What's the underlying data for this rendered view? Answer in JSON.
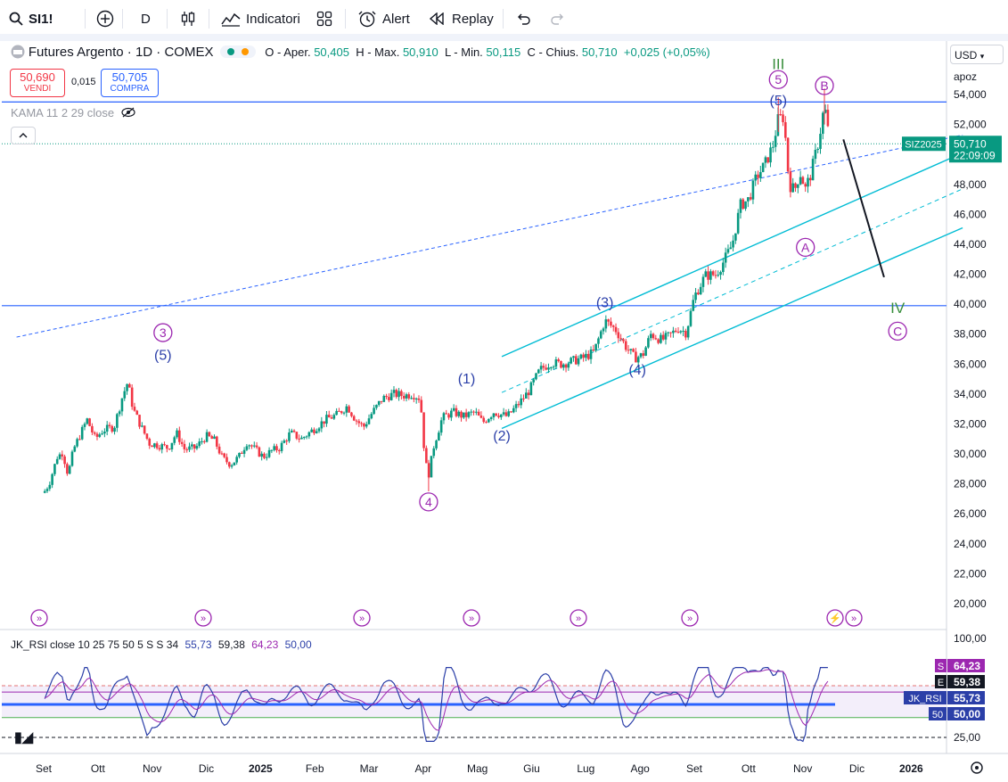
{
  "toolbar": {
    "symbol": "SI1!",
    "interval": "D",
    "indicators_label": "Indicatori",
    "alert_label": "Alert",
    "replay_label": "Replay"
  },
  "legend": {
    "title": "Futures Argento · 1D · COMEX",
    "o_label": "O - Aper.",
    "o_val": "50,405",
    "h_label": "H - Max.",
    "h_val": "50,910",
    "l_label": "L - Min.",
    "l_val": "50,115",
    "c_label": "C - Chius.",
    "c_val": "50,710",
    "change": "+0,025 (+0,05%)",
    "sell_price": "50,690",
    "sell_label": "VENDI",
    "spread": "0,015",
    "buy_price": "50,705",
    "buy_label": "COMPRA",
    "kama": "KAMA 11 2 29 close"
  },
  "scale": {
    "currency": "USD",
    "mode": "apoz"
  },
  "colors": {
    "up": "#089981",
    "down": "#f23645",
    "channel": "#00bcd4",
    "level": "#2962ff",
    "wave": "#2b3fa8",
    "major": "#9c27b0",
    "degree": "#388e3c"
  },
  "chart_data": [
    {
      "type": "candlestick",
      "ylim": [
        19000,
        55500
      ],
      "yticks": [
        "54,000",
        "52,000",
        "50,000",
        "48,000",
        "46,000",
        "44,000",
        "42,000",
        "40,000",
        "38,000",
        "36,000",
        "34,000",
        "32,000",
        "30,000",
        "28,000",
        "26,000",
        "24,000",
        "22,000",
        "20,000"
      ],
      "ytick_values": [
        54000,
        52000,
        50000,
        48000,
        46000,
        44000,
        42000,
        40000,
        38000,
        36000,
        34000,
        32000,
        30000,
        28000,
        26000,
        24000,
        22000,
        20000
      ],
      "xticks": [
        "Set",
        "Ott",
        "Nov",
        "Dic",
        "2025",
        "Feb",
        "Mar",
        "Apr",
        "Mag",
        "Giu",
        "Lug",
        "Ago",
        "Set",
        "Ott",
        "Nov",
        "Dic",
        "2026"
      ],
      "xtick_months": [
        0,
        1,
        2,
        3,
        4,
        5,
        6,
        7,
        8,
        9,
        10,
        11,
        12,
        13,
        14,
        15,
        16
      ],
      "x_unit": "months since 2024-09-01",
      "close_series": [
        [
          0,
          27.4
        ],
        [
          0.1,
          28.0
        ],
        [
          0.25,
          29.8
        ],
        [
          0.35,
          30.1
        ],
        [
          0.45,
          28.6
        ],
        [
          0.55,
          30.3
        ],
        [
          0.65,
          31.1
        ],
        [
          0.8,
          32.3
        ],
        [
          0.95,
          31.0
        ],
        [
          1.1,
          31.6
        ],
        [
          1.3,
          31.8
        ],
        [
          1.45,
          33.8
        ],
        [
          1.55,
          34.8
        ],
        [
          1.65,
          33.0
        ],
        [
          1.8,
          31.8
        ],
        [
          1.95,
          30.7
        ],
        [
          2.1,
          30.6
        ],
        [
          2.3,
          30.4
        ],
        [
          2.45,
          31.4
        ],
        [
          2.6,
          30.3
        ],
        [
          2.8,
          30.4
        ],
        [
          3.0,
          31.2
        ],
        [
          3.15,
          30.9
        ],
        [
          3.3,
          29.7
        ],
        [
          3.45,
          29.3
        ],
        [
          3.6,
          29.8
        ],
        [
          3.75,
          30.8
        ],
        [
          3.9,
          30.3
        ],
        [
          4.05,
          29.8
        ],
        [
          4.2,
          30.2
        ],
        [
          4.35,
          30.4
        ],
        [
          4.55,
          31.4
        ],
        [
          4.75,
          31.0
        ],
        [
          5.0,
          31.7
        ],
        [
          5.2,
          32.3
        ],
        [
          5.4,
          32.6
        ],
        [
          5.6,
          33.2
        ],
        [
          5.75,
          32.3
        ],
        [
          5.9,
          31.8
        ],
        [
          6.05,
          32.7
        ],
        [
          6.25,
          33.7
        ],
        [
          6.45,
          34.0
        ],
        [
          6.65,
          33.9
        ],
        [
          6.8,
          34.0
        ],
        [
          6.95,
          33.7
        ],
        [
          7.0,
          31.0
        ],
        [
          7.05,
          29.3
        ],
        [
          7.1,
          28.6
        ],
        [
          7.2,
          30.6
        ],
        [
          7.35,
          32.4
        ],
        [
          7.55,
          32.8
        ],
        [
          7.75,
          32.5
        ],
        [
          7.95,
          32.8
        ],
        [
          8.1,
          32.1
        ],
        [
          8.3,
          32.8
        ],
        [
          8.55,
          32.5
        ],
        [
          8.75,
          33.3
        ],
        [
          8.95,
          34.2
        ],
        [
          9.15,
          35.6
        ],
        [
          9.35,
          36.1
        ],
        [
          9.55,
          36.0
        ],
        [
          9.75,
          36.2
        ],
        [
          9.95,
          36.4
        ],
        [
          10.15,
          36.8
        ],
        [
          10.35,
          38.9
        ],
        [
          10.55,
          38.3
        ],
        [
          10.75,
          37.1
        ],
        [
          10.9,
          36.4
        ],
        [
          11.05,
          36.6
        ],
        [
          11.2,
          38.0
        ],
        [
          11.4,
          37.6
        ],
        [
          11.55,
          37.9
        ],
        [
          11.7,
          38.4
        ],
        [
          11.85,
          38.1
        ],
        [
          12.0,
          40.5
        ],
        [
          12.2,
          41.9
        ],
        [
          12.4,
          42.0
        ],
        [
          12.55,
          42.9
        ],
        [
          12.7,
          44.0
        ],
        [
          12.85,
          46.6
        ],
        [
          13.0,
          47.0
        ],
        [
          13.15,
          48.5
        ],
        [
          13.3,
          49.3
        ],
        [
          13.45,
          50.6
        ],
        [
          13.55,
          52.4
        ],
        [
          13.65,
          52.5
        ],
        [
          13.75,
          48.0
        ],
        [
          13.85,
          47.6
        ],
        [
          13.95,
          48.8
        ],
        [
          14.05,
          47.7
        ],
        [
          14.15,
          48.7
        ],
        [
          14.3,
          51.0
        ],
        [
          14.4,
          53.3
        ],
        [
          14.5,
          50.7
        ]
      ],
      "unit_scale_note": "close_series values in thousands (x1000)",
      "last_price": "50,710",
      "last_symbol": "SIZ2025",
      "countdown": "22:09:09",
      "wave_labels": [
        {
          "text": "III",
          "x": 13.55,
          "y": 55700,
          "kind": "degree"
        },
        {
          "text": "5",
          "x": 13.55,
          "y": 54700,
          "kind": "major"
        },
        {
          "text": "(5)",
          "x": 13.55,
          "y": 53300,
          "kind": "wave"
        },
        {
          "text": "B",
          "x": 14.4,
          "y": 54300,
          "kind": "major"
        },
        {
          "text": "A",
          "x": 14.05,
          "y": 43500,
          "kind": "major"
        },
        {
          "text": "(3)",
          "x": 10.35,
          "y": 39800,
          "kind": "wave"
        },
        {
          "text": "(4)",
          "x": 10.95,
          "y": 35300,
          "kind": "wave"
        },
        {
          "text": "(1)",
          "x": 7.8,
          "y": 34700,
          "kind": "wave"
        },
        {
          "text": "(2)",
          "x": 8.45,
          "y": 30900,
          "kind": "wave"
        },
        {
          "text": "3",
          "x": 2.2,
          "y": 37800,
          "kind": "major"
        },
        {
          "text": "(5)",
          "x": 2.2,
          "y": 36300,
          "kind": "wave"
        },
        {
          "text": "4",
          "x": 7.1,
          "y": 26500,
          "kind": "major"
        },
        {
          "text": "IV",
          "x": 15.75,
          "y": 39400,
          "kind": "degree"
        },
        {
          "text": "C",
          "x": 15.75,
          "y": 37900,
          "kind": "major"
        }
      ],
      "hlines": [
        53500,
        39900
      ]
    },
    {
      "type": "line",
      "indicator": "JK_RSI close 10 25 75 50 5 S S 34",
      "values_text": [
        "55,73",
        "59,38",
        "64,23",
        "50,00"
      ],
      "ylim": [
        15,
        105
      ],
      "yticks": [
        "100,00",
        "25,00"
      ],
      "ytick_values": [
        100,
        25
      ],
      "axis_tags": [
        {
          "label": "S",
          "value": "64,23",
          "y": 64.23,
          "color": "#9c27b0"
        },
        {
          "label": "E",
          "value": "59,38",
          "y": 59.38,
          "color": "#131722"
        },
        {
          "label": "JK_RSI",
          "value": "55,73",
          "y": 55.73,
          "color": "#2b3fa8"
        },
        {
          "label": "50",
          "value": "50,00",
          "y": 50,
          "color": "#2b3fa8"
        }
      ]
    }
  ]
}
